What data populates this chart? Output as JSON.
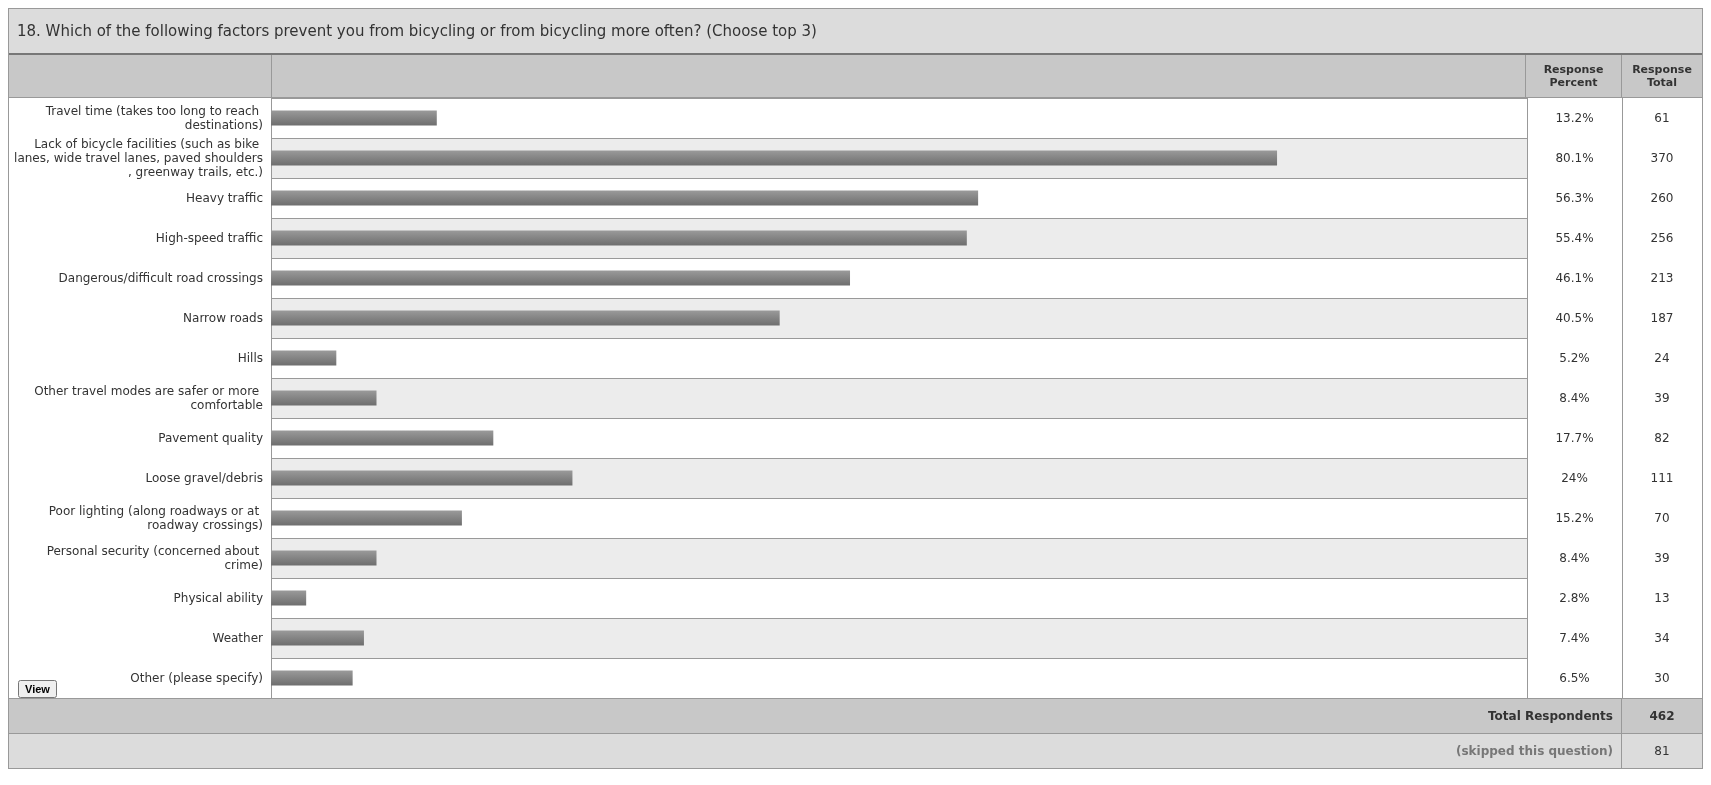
{
  "chart_data": {
    "type": "bar",
    "orientation": "horizontal",
    "title": "18. Which of the following factors prevent you from bicycling or from bicycling more often? (Choose top 3)",
    "categories": [
      "Travel time (takes too long to reach destinations)",
      "Lack of bicycle facilities (such as bike lanes, wide travel lanes, paved shoulders, greenway trails, etc.)",
      "Heavy traffic",
      "High-speed traffic",
      "Dangerous/difficult road crossings",
      "Narrow roads",
      "Hills",
      "Other travel modes are safer or more comfortable",
      "Pavement quality",
      "Loose gravel/debris",
      "Poor lighting (along roadways or at roadway crossings)",
      "Personal security (concerned about crime)",
      "Physical ability",
      "Weather",
      "Other (please specify)"
    ],
    "series": [
      {
        "name": "Response Percent",
        "color": "#6e6e6e",
        "values": [
          13.2,
          80.1,
          56.3,
          55.4,
          46.1,
          40.5,
          5.2,
          8.4,
          17.7,
          24,
          15.2,
          8.4,
          2.8,
          7.4,
          6.5
        ],
        "value_labels": [
          "13.2%",
          "80.1%",
          "56.3%",
          "55.4%",
          "46.1%",
          "40.5%",
          "5.2%",
          "8.4%",
          "17.7%",
          "24%",
          "15.2%",
          "8.4%",
          "2.8%",
          "7.4%",
          "6.5%"
        ]
      }
    ],
    "xlim": [
      0,
      100
    ],
    "tick_labels": "y",
    "grid": "y",
    "annotations": [
      "Response Total",
      "61",
      "370",
      "260",
      "256",
      "213",
      "187",
      "24",
      "39",
      "82",
      "111",
      "70",
      "39",
      "13",
      "34",
      "30",
      "Total Respondents",
      "462",
      "(skipped this question)",
      "81",
      "View"
    ]
  }
}
